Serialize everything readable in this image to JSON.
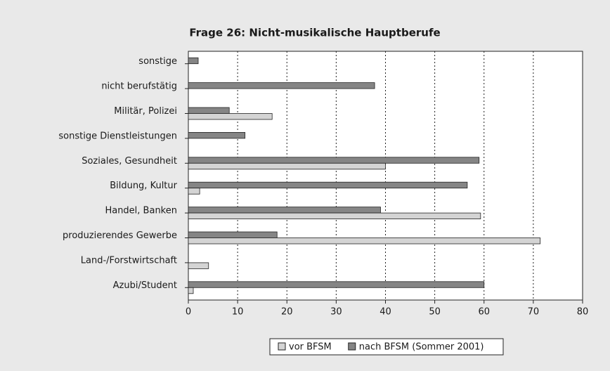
{
  "chart_data": {
    "type": "hbar",
    "title": "Frage 26: Nicht-musikalische Hauptberufe",
    "categories": [
      "sonstige",
      "nicht berufstätig",
      "Militär, Polizei",
      "sonstige Dienstleistungen",
      "Soziales, Gesundheit",
      "Bildung, Kultur",
      "Handel, Banken",
      "produzierendes Gewerbe",
      "Land-/Forstwirtschaft",
      "Azubi/Student"
    ],
    "series": [
      {
        "name": "vor BFSM",
        "color": "#d4d4d4",
        "values": [
          null,
          null,
          17,
          null,
          40,
          2.3,
          59.3,
          71.4,
          4.1,
          1
        ]
      },
      {
        "name": "nach BFSM (Sommer 2001)",
        "color": "#858585",
        "values": [
          2,
          37.8,
          8.3,
          11.5,
          59,
          56.6,
          39,
          18,
          null,
          60
        ]
      }
    ],
    "xlim": [
      0,
      80
    ],
    "xticks": [
      0,
      10,
      20,
      30,
      40,
      50,
      60,
      70,
      80
    ],
    "grid": true,
    "legend": "bottom"
  }
}
